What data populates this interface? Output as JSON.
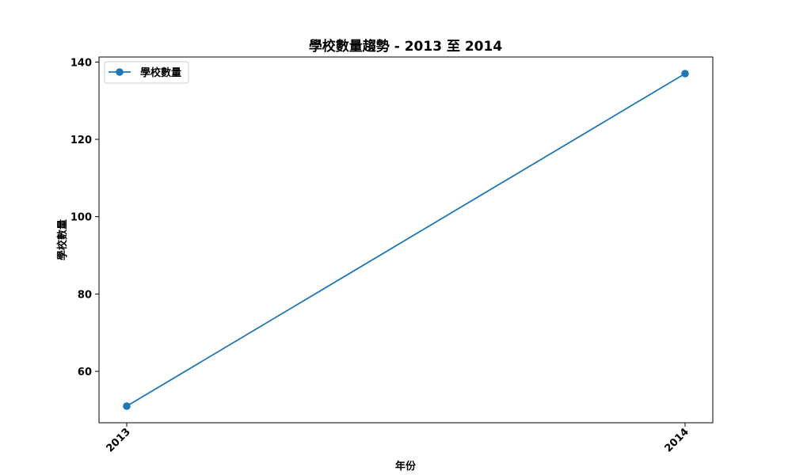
{
  "chart_data": {
    "type": "line",
    "title": "學校數量趨勢 - 2013 至 2014",
    "xlabel": "年份",
    "ylabel": "學校數量",
    "x": [
      "2013",
      "2014"
    ],
    "series": [
      {
        "name": "學校數量",
        "values": [
          51,
          137
        ],
        "color": "#1f77b4",
        "marker": "circle"
      }
    ],
    "ylim": [
      46.7,
      141.3
    ],
    "yticks": [
      60,
      80,
      100,
      120,
      140
    ],
    "legend_placement": "top-left",
    "grid": false
  }
}
